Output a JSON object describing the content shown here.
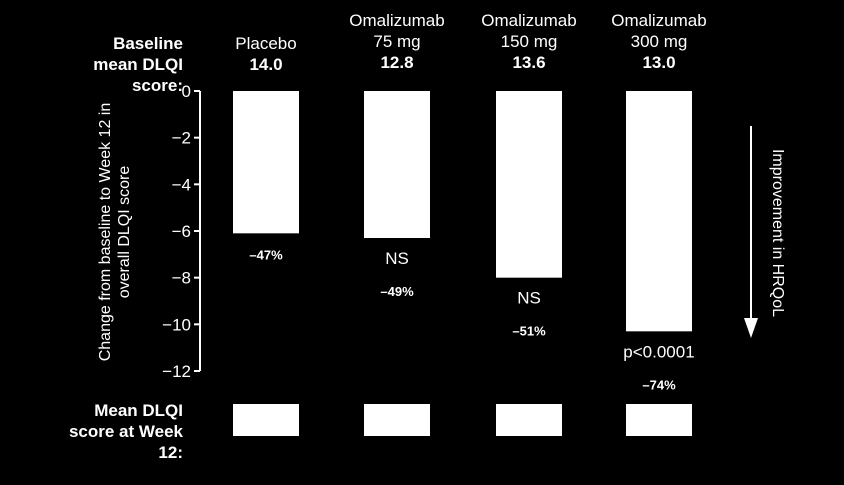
{
  "header": {
    "baseline_label_line1": "Baseline",
    "baseline_label_line2": "mean DLQI",
    "baseline_label_line3": "score:",
    "groups": [
      {
        "line1": "Placebo",
        "line2": "",
        "baseline": "14.0"
      },
      {
        "line1": "Omalizumab",
        "line2": "75 mg",
        "baseline": "12.8"
      },
      {
        "line1": "Omalizumab",
        "line2": "150 mg",
        "baseline": "13.6"
      },
      {
        "line1": "Omalizumab",
        "line2": "300 mg",
        "baseline": "13.0"
      }
    ]
  },
  "footer": {
    "line1": "Mean DLQI",
    "line2": "score at Week",
    "line3": "12:"
  },
  "arrow_label": "Improvement in HRQoL",
  "chart_data": {
    "type": "bar",
    "categories": [
      "Placebo",
      "Omalizumab 75 mg",
      "Omalizumab 150 mg",
      "Omalizumab 300 mg"
    ],
    "values": [
      -6.1,
      -6.3,
      -8.0,
      -10.3
    ],
    "ylabel": "Change from baseline to Week 12 in overall DLQI score",
    "ylim": [
      -12,
      0
    ],
    "yticks": [
      0,
      -2,
      -4,
      -6,
      -8,
      -10,
      -12
    ],
    "ytick_labels": [
      "0",
      "−2",
      "−4",
      "−6",
      "−8",
      "−10",
      "−12"
    ],
    "significance": [
      "",
      "NS",
      "NS",
      "p<0.0001"
    ],
    "percent_change": [
      "–47%",
      "–49%",
      "–51%",
      "–74%"
    ],
    "grid": false,
    "colors": {
      "bar": "#ffffff",
      "background": "#000000",
      "text": "#ffffff"
    }
  }
}
